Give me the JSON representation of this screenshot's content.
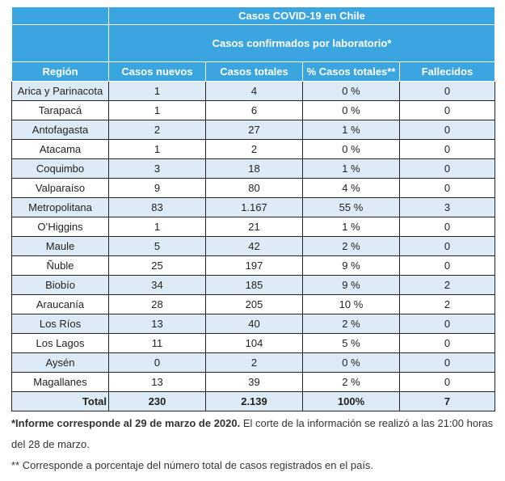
{
  "table": {
    "title": "Casos COVID-19 en Chile",
    "subtitle": "Casos confirmados por laboratorio*",
    "columns": [
      "Región",
      "Casos nuevos",
      "Casos totales",
      "% Casos totales**",
      "Fallecidos"
    ],
    "rows": [
      [
        "Arica y Parinacota",
        "1",
        "4",
        "0 %",
        "0"
      ],
      [
        "Tarapacá",
        "1",
        "6",
        "0 %",
        "0"
      ],
      [
        "Antofagasta",
        "2",
        "27",
        "1 %",
        "0"
      ],
      [
        "Atacama",
        "1",
        "2",
        "0 %",
        "0"
      ],
      [
        "Coquimbo",
        "3",
        "18",
        "1 %",
        "0"
      ],
      [
        "Valparaíso",
        "9",
        "80",
        "4 %",
        "0"
      ],
      [
        "Metropolitana",
        "83",
        "1.167",
        "55 %",
        "3"
      ],
      [
        "O’Higgins",
        "1",
        "21",
        "1 %",
        "0"
      ],
      [
        "Maule",
        "5",
        "42",
        "2 %",
        "0"
      ],
      [
        "Ñuble",
        "25",
        "197",
        "9 %",
        "0"
      ],
      [
        "Biobío",
        "34",
        "185",
        "9 %",
        "2"
      ],
      [
        "Araucanía",
        "28",
        "205",
        "10 %",
        "2"
      ],
      [
        "Los Ríos",
        "13",
        "40",
        "2 %",
        "0"
      ],
      [
        "Los Lagos",
        "11",
        "104",
        "5 %",
        "0"
      ],
      [
        "Aysén",
        "0",
        "2",
        "0 %",
        "0"
      ],
      [
        "Magallanes",
        "13",
        "39",
        "2 %",
        "0"
      ]
    ],
    "total": [
      "Total",
      "230",
      "2.139",
      "100%",
      "7"
    ]
  },
  "notes": {
    "note1_bold": "*Informe corresponde al 29 de marzo de 2020.",
    "note1_rest": " El corte de la información se realizó a las 21:00 horas del 28 de marzo.",
    "note2": "** Corresponde a porcentaje del número total de casos registrados en el país."
  },
  "colors": {
    "header_bg": "#3aa5de",
    "row_alt_bg": "#dcebf6"
  }
}
